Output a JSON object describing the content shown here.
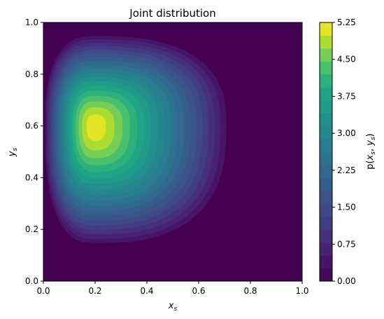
{
  "chart_data": {
    "type": "heatmap",
    "subtype": "filled-contour",
    "title": "Joint distribution",
    "xlabel": "x",
    "xlabel_sub": "s",
    "ylabel": "y",
    "ylabel_sub": "s",
    "xlim": [
      0,
      1
    ],
    "ylim": [
      0,
      1
    ],
    "xticks": [
      "0.0",
      "0.2",
      "0.4",
      "0.6",
      "0.8",
      "1.0"
    ],
    "yticks": [
      "0.0",
      "0.2",
      "0.4",
      "0.6",
      "0.8",
      "1.0"
    ],
    "grid": false,
    "colormap": "viridis",
    "peak": {
      "x": 0.2,
      "y": 0.6,
      "value": 5.25
    },
    "contour_levels": [
      0,
      0.2625,
      0.525,
      0.7875,
      1.05,
      1.3125,
      1.575,
      1.8375,
      2.1,
      2.3625,
      2.625,
      2.8875,
      3.15,
      3.4125,
      3.675,
      3.9375,
      4.2,
      4.4625,
      4.725,
      4.9875,
      5.25
    ],
    "colorbar": {
      "label": "p(x_s, y_s)",
      "label_main": "p(",
      "label_x": "x",
      "label_sub": "s",
      "label_sep": ", ",
      "label_y": "y",
      "label_end": ")",
      "min": 0,
      "max": 5.25,
      "ticks": [
        "0.00",
        "0.75",
        "1.50",
        "2.25",
        "3.00",
        "3.75",
        "4.50",
        "5.25"
      ],
      "tick_values": [
        0,
        0.75,
        1.5,
        2.25,
        3.0,
        3.75,
        4.5,
        5.25
      ]
    }
  }
}
